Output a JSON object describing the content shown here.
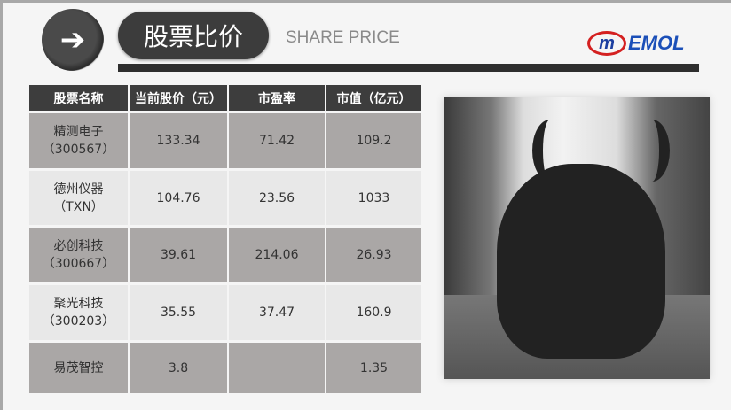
{
  "header": {
    "title": "股票比价",
    "subtitle": "SHARE PRICE",
    "logo_text": "EMOL",
    "logo_mark": "m",
    "arrow_icon": "arrow-right-icon"
  },
  "table": {
    "headers": [
      "股票名称",
      "当前股价（元）",
      "市盈率",
      "市值（亿元）"
    ],
    "rows": [
      {
        "name": "精测电子",
        "code": "（300567）",
        "price": "133.34",
        "pe": "71.42",
        "cap": "109.2"
      },
      {
        "name": "德州仪器",
        "code": "（TXN）",
        "price": "104.76",
        "pe": "23.56",
        "cap": "1033"
      },
      {
        "name": "必创科技",
        "code": "（300667）",
        "price": "39.61",
        "pe": "214.06",
        "cap": "26.93"
      },
      {
        "name": "聚光科技",
        "code": "（300203）",
        "price": "35.55",
        "pe": "37.47",
        "cap": "160.9"
      },
      {
        "name": "易茂智控",
        "code": "",
        "price": "3.8",
        "pe": "",
        "cap": "1.35"
      }
    ]
  },
  "colors": {
    "header_bg": "#3d3d3d",
    "row_dark": "#aaa7a6",
    "row_light": "#e8e8e8",
    "logo_red": "#d42020",
    "logo_blue": "#1b4fb8"
  }
}
